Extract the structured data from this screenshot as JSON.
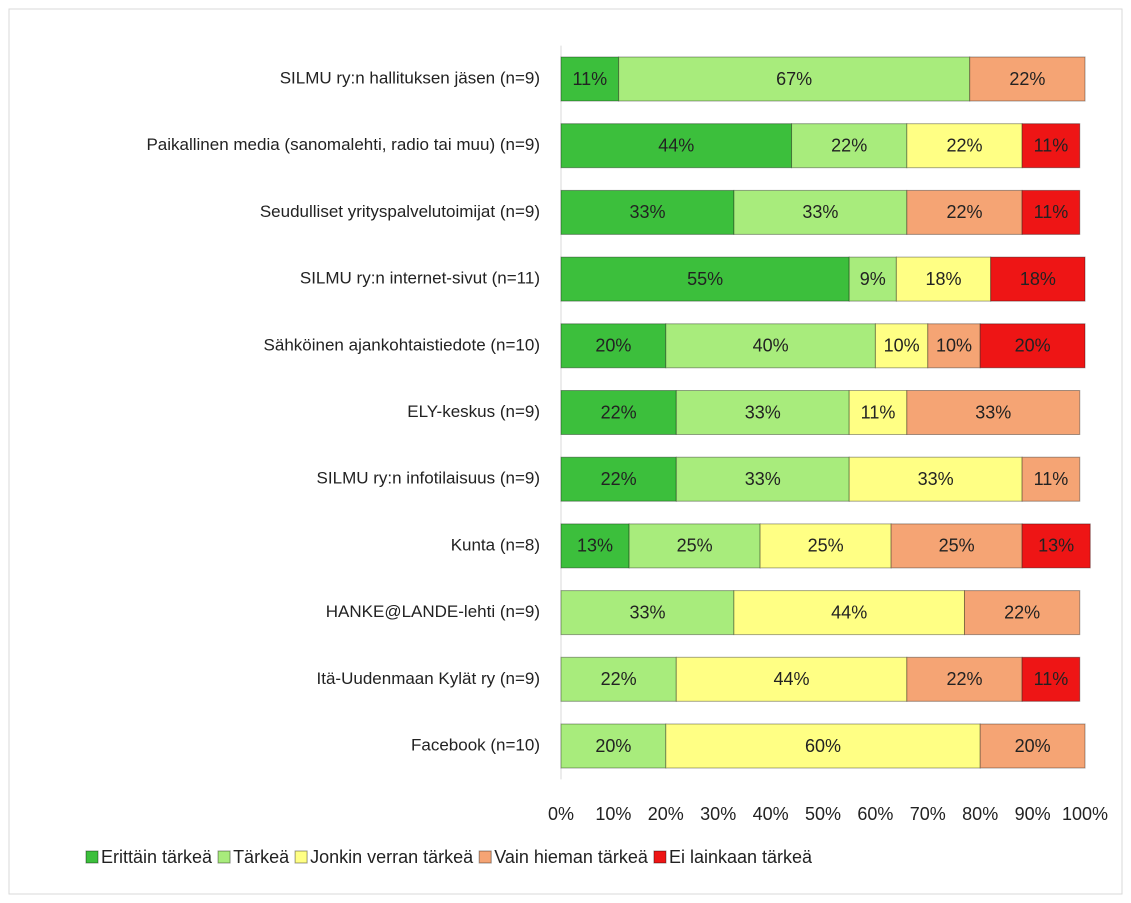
{
  "chart_data": {
    "type": "stacked_barh",
    "categories": [
      "SILMU ry:n hallituksen jäsen (n=9)",
      "Paikallinen media (sanomalehti, radio tai muu) (n=9)",
      "Seudulliset yrityspalvelutoimijat (n=9)",
      "SILMU ry:n internet-sivut (n=11)",
      "Sähköinen ajankohtaistiedote (n=10)",
      "ELY-keskus (n=9)",
      "SILMU ry:n infotilaisuus (n=9)",
      "Kunta (n=8)",
      "HANKE@LANDE-lehti (n=9)",
      "Itä-Uudenmaan Kylät ry (n=9)",
      "Facebook (n=10)"
    ],
    "series": [
      {
        "name": "Erittäin tärkeä",
        "color": "#3cbf3c",
        "values": [
          11,
          44,
          33,
          55,
          20,
          22,
          22,
          13,
          null,
          null,
          null
        ],
        "value_labels": [
          "11%",
          "44%",
          "33%",
          "55%",
          "20%",
          "22%",
          "22%",
          "13%",
          null,
          null,
          null
        ]
      },
      {
        "name": "Tärkeä",
        "color": "#a8ec7c",
        "values": [
          67,
          22,
          33,
          9,
          40,
          33,
          33,
          25,
          33,
          22,
          20
        ],
        "value_labels": [
          "67%",
          "22%",
          "33%",
          "9%",
          "40%",
          "33%",
          "33%",
          "25%",
          "33%",
          "22%",
          "20%"
        ]
      },
      {
        "name": "Jonkin verran tärkeä",
        "color": "#ffff84",
        "values": [
          null,
          22,
          null,
          18,
          10,
          11,
          33,
          25,
          44,
          44,
          60
        ],
        "value_labels": [
          null,
          "22%",
          null,
          "18%",
          "10%",
          "11%",
          "33%",
          "25%",
          "44%",
          "44%",
          "60%"
        ]
      },
      {
        "name": "Vain hieman tärkeä",
        "color": "#f5a474",
        "values": [
          22,
          null,
          22,
          null,
          10,
          33,
          11,
          25,
          22,
          22,
          20
        ],
        "value_labels": [
          "22%",
          null,
          "22%",
          null,
          "10%",
          "33%",
          "11%",
          "25%",
          "22%",
          "22%",
          "20%"
        ]
      },
      {
        "name": "Ei lainkaan tärkeä",
        "color": "#ee1515",
        "values": [
          null,
          11,
          11,
          18,
          20,
          null,
          null,
          13,
          null,
          11,
          null
        ],
        "value_labels": [
          null,
          "11%",
          "11%",
          "18%",
          "20%",
          null,
          null,
          "13%",
          null,
          "11%",
          null
        ]
      }
    ],
    "xlim": [
      0,
      100
    ],
    "xticks": [
      {
        "value": 0,
        "label": "0%"
      },
      {
        "value": 10,
        "label": "10%"
      },
      {
        "value": 20,
        "label": "20%"
      },
      {
        "value": 30,
        "label": "30%"
      },
      {
        "value": 40,
        "label": "40%"
      },
      {
        "value": 50,
        "label": "50%"
      },
      {
        "value": 60,
        "label": "60%"
      },
      {
        "value": 70,
        "label": "70%"
      },
      {
        "value": 80,
        "label": "80%"
      },
      {
        "value": 90,
        "label": "90%"
      },
      {
        "value": 100,
        "label": "100%"
      }
    ],
    "grid": false,
    "legend": "bottom"
  }
}
